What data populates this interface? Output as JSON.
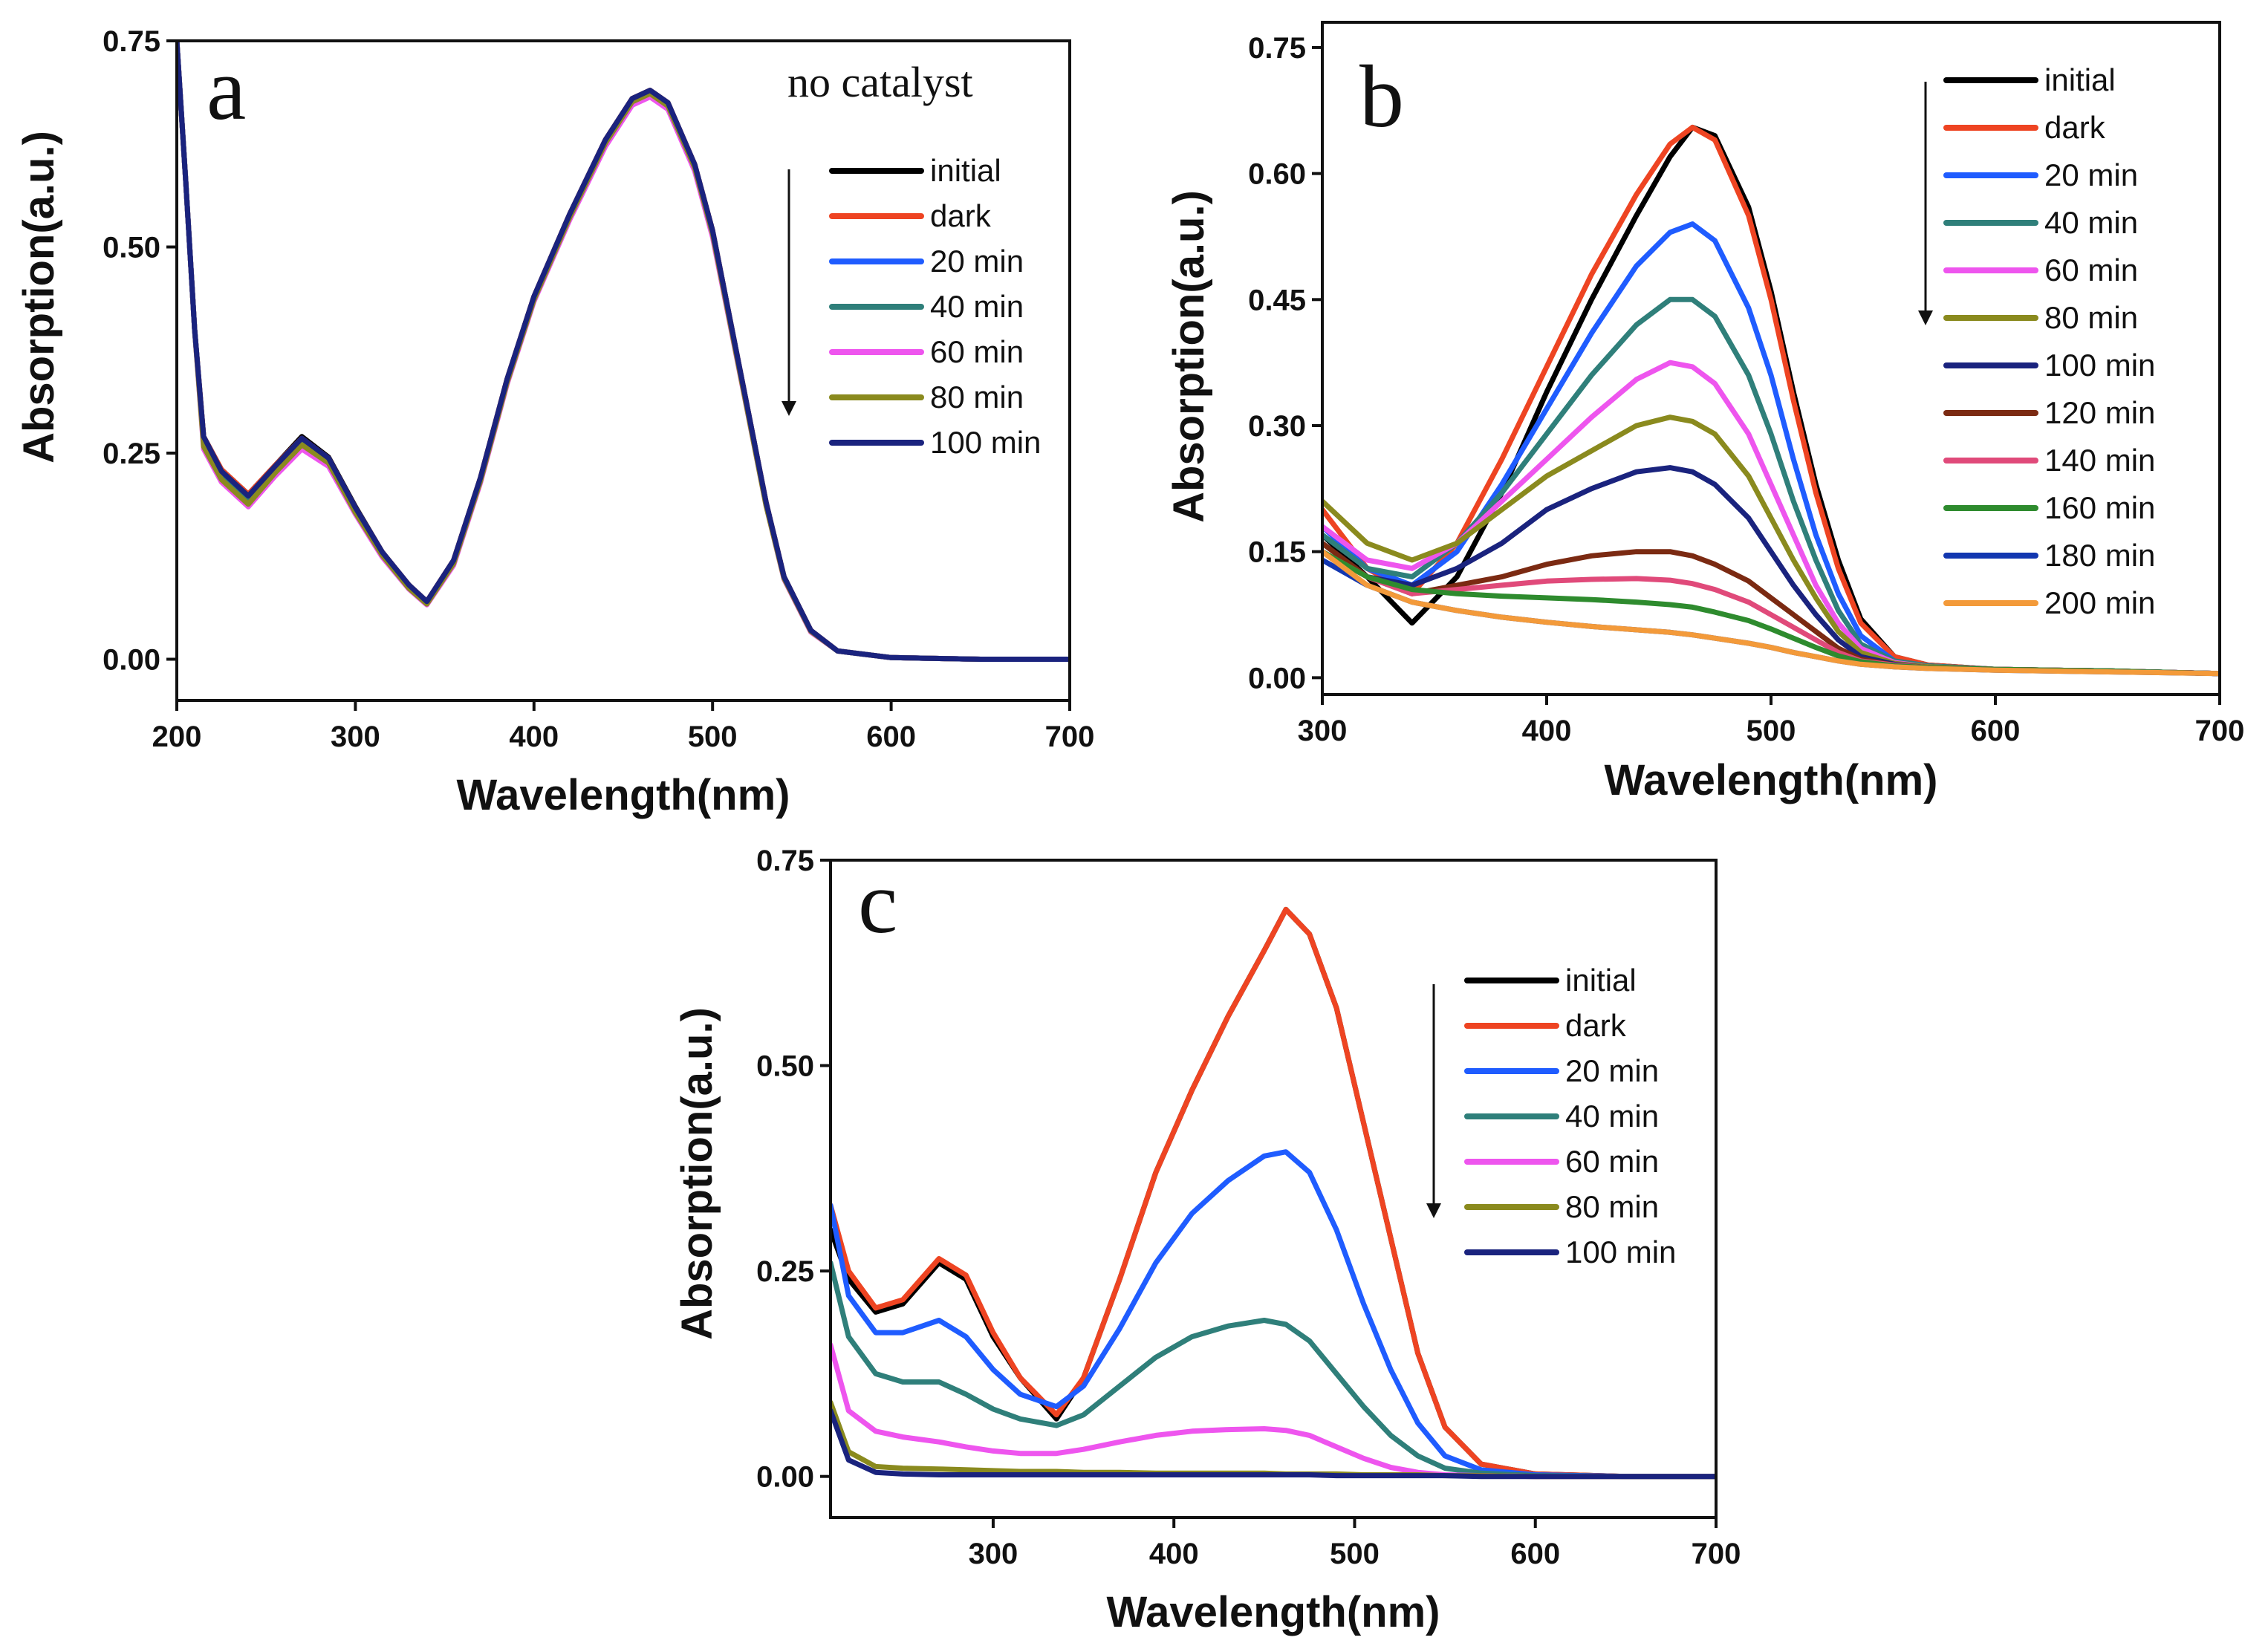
{
  "chart_data": [
    {
      "panel": "a",
      "type": "line",
      "annotation": "no catalyst",
      "xlabel": "Wavelength(nm)",
      "ylabel": "Absorption(a.u.)",
      "xlim": [
        200,
        700
      ],
      "ylim": [
        -0.05,
        0.75
      ],
      "xticks": [
        "200",
        "300",
        "400",
        "500",
        "600",
        "700"
      ],
      "yticks": [
        "0.00",
        "0.25",
        "0.50",
        "0.75"
      ],
      "x": [
        200,
        205,
        210,
        215,
        225,
        240,
        255,
        270,
        285,
        300,
        315,
        330,
        340,
        355,
        370,
        385,
        400,
        420,
        440,
        455,
        465,
        475,
        490,
        500,
        510,
        520,
        530,
        540,
        555,
        570,
        600,
        650,
        700
      ],
      "series": [
        {
          "name": "initial",
          "color": "#000000",
          "values": [
            0.75,
            0.58,
            0.4,
            0.27,
            0.23,
            0.2,
            0.235,
            0.27,
            0.245,
            0.185,
            0.13,
            0.09,
            0.07,
            0.12,
            0.22,
            0.34,
            0.44,
            0.54,
            0.63,
            0.68,
            0.69,
            0.675,
            0.6,
            0.52,
            0.41,
            0.3,
            0.19,
            0.1,
            0.035,
            0.01,
            0.002,
            0.0,
            0.0
          ]
        },
        {
          "name": "dark",
          "color": "#ee4422",
          "values": [
            0.75,
            0.58,
            0.4,
            0.27,
            0.23,
            0.2,
            0.235,
            0.268,
            0.244,
            0.184,
            0.13,
            0.09,
            0.07,
            0.12,
            0.22,
            0.34,
            0.44,
            0.54,
            0.63,
            0.68,
            0.69,
            0.675,
            0.6,
            0.52,
            0.41,
            0.3,
            0.19,
            0.1,
            0.035,
            0.01,
            0.002,
            0.0,
            0.0
          ]
        },
        {
          "name": "20 min",
          "color": "#1f5cff",
          "values": [
            0.75,
            0.58,
            0.4,
            0.265,
            0.225,
            0.195,
            0.232,
            0.265,
            0.242,
            0.182,
            0.128,
            0.088,
            0.069,
            0.118,
            0.218,
            0.338,
            0.438,
            0.538,
            0.628,
            0.678,
            0.688,
            0.673,
            0.598,
            0.518,
            0.408,
            0.298,
            0.188,
            0.099,
            0.034,
            0.01,
            0.002,
            0.0,
            0.0
          ]
        },
        {
          "name": "40 min",
          "color": "#2f7f7a",
          "values": [
            0.75,
            0.58,
            0.4,
            0.262,
            0.222,
            0.192,
            0.23,
            0.263,
            0.24,
            0.18,
            0.127,
            0.087,
            0.068,
            0.117,
            0.217,
            0.337,
            0.437,
            0.537,
            0.627,
            0.677,
            0.687,
            0.672,
            0.597,
            0.517,
            0.407,
            0.297,
            0.187,
            0.098,
            0.034,
            0.01,
            0.002,
            0.0,
            0.0
          ]
        },
        {
          "name": "60 min",
          "color": "#ee55ee",
          "values": [
            0.75,
            0.58,
            0.4,
            0.255,
            0.215,
            0.185,
            0.222,
            0.255,
            0.234,
            0.176,
            0.124,
            0.085,
            0.066,
            0.114,
            0.214,
            0.334,
            0.434,
            0.533,
            0.622,
            0.672,
            0.682,
            0.667,
            0.592,
            0.512,
            0.404,
            0.295,
            0.186,
            0.097,
            0.033,
            0.01,
            0.002,
            0.0,
            0.0
          ]
        },
        {
          "name": "80 min",
          "color": "#8a8a1e",
          "values": [
            0.75,
            0.58,
            0.4,
            0.258,
            0.218,
            0.188,
            0.226,
            0.26,
            0.238,
            0.178,
            0.126,
            0.086,
            0.067,
            0.116,
            0.216,
            0.336,
            0.436,
            0.536,
            0.626,
            0.676,
            0.686,
            0.671,
            0.596,
            0.516,
            0.406,
            0.296,
            0.186,
            0.098,
            0.034,
            0.01,
            0.002,
            0.0,
            0.0
          ]
        },
        {
          "name": "100 min",
          "color": "#1a237e",
          "values": [
            0.75,
            0.58,
            0.4,
            0.27,
            0.228,
            0.198,
            0.234,
            0.268,
            0.244,
            0.184,
            0.13,
            0.09,
            0.07,
            0.12,
            0.22,
            0.34,
            0.44,
            0.54,
            0.63,
            0.68,
            0.69,
            0.675,
            0.6,
            0.52,
            0.41,
            0.3,
            0.19,
            0.1,
            0.035,
            0.01,
            0.002,
            0.0,
            0.0
          ]
        }
      ]
    },
    {
      "panel": "b",
      "type": "line",
      "xlabel": "Wavelength(nm)",
      "ylabel": "Absorption(a.u.)",
      "xlim": [
        300,
        700
      ],
      "ylim": [
        -0.02,
        0.78
      ],
      "xticks": [
        "300",
        "400",
        "500",
        "600",
        "700"
      ],
      "yticks": [
        "0.00",
        "0.15",
        "0.30",
        "0.45",
        "0.60",
        "0.75"
      ],
      "x": [
        300,
        320,
        340,
        360,
        380,
        400,
        420,
        440,
        455,
        465,
        475,
        490,
        500,
        510,
        520,
        530,
        540,
        555,
        570,
        600,
        650,
        700
      ],
      "series": [
        {
          "name": "initial",
          "color": "#000000",
          "values": [
            0.17,
            0.12,
            0.065,
            0.12,
            0.22,
            0.34,
            0.45,
            0.55,
            0.62,
            0.655,
            0.645,
            0.56,
            0.46,
            0.34,
            0.23,
            0.14,
            0.07,
            0.025,
            0.015,
            0.01,
            0.008,
            0.005
          ]
        },
        {
          "name": "dark",
          "color": "#ee4422",
          "values": [
            0.2,
            0.13,
            0.1,
            0.16,
            0.26,
            0.37,
            0.48,
            0.575,
            0.635,
            0.655,
            0.64,
            0.55,
            0.45,
            0.33,
            0.22,
            0.13,
            0.065,
            0.025,
            0.015,
            0.01,
            0.008,
            0.005
          ]
        },
        {
          "name": "20 min",
          "color": "#1f5cff",
          "values": [
            0.18,
            0.13,
            0.11,
            0.15,
            0.23,
            0.32,
            0.41,
            0.49,
            0.53,
            0.54,
            0.52,
            0.44,
            0.36,
            0.26,
            0.17,
            0.1,
            0.05,
            0.02,
            0.014,
            0.01,
            0.008,
            0.005
          ]
        },
        {
          "name": "40 min",
          "color": "#2f7f7a",
          "values": [
            0.17,
            0.13,
            0.12,
            0.16,
            0.22,
            0.29,
            0.36,
            0.42,
            0.45,
            0.45,
            0.43,
            0.36,
            0.29,
            0.21,
            0.14,
            0.08,
            0.04,
            0.02,
            0.014,
            0.01,
            0.008,
            0.005
          ]
        },
        {
          "name": "60 min",
          "color": "#ee55ee",
          "values": [
            0.18,
            0.14,
            0.13,
            0.16,
            0.21,
            0.26,
            0.31,
            0.355,
            0.375,
            0.37,
            0.35,
            0.29,
            0.23,
            0.17,
            0.11,
            0.065,
            0.035,
            0.018,
            0.013,
            0.01,
            0.008,
            0.005
          ]
        },
        {
          "name": "80 min",
          "color": "#8a8a1e",
          "values": [
            0.21,
            0.16,
            0.14,
            0.16,
            0.2,
            0.24,
            0.27,
            0.3,
            0.31,
            0.305,
            0.29,
            0.24,
            0.19,
            0.14,
            0.095,
            0.055,
            0.03,
            0.017,
            0.013,
            0.01,
            0.008,
            0.005
          ]
        },
        {
          "name": "100 min",
          "color": "#1a237e",
          "values": [
            0.16,
            0.12,
            0.11,
            0.13,
            0.16,
            0.2,
            0.225,
            0.245,
            0.25,
            0.245,
            0.23,
            0.19,
            0.15,
            0.11,
            0.075,
            0.045,
            0.025,
            0.016,
            0.012,
            0.01,
            0.008,
            0.005
          ]
        },
        {
          "name": "120 min",
          "color": "#7b2a12",
          "values": [
            0.16,
            0.12,
            0.1,
            0.11,
            0.12,
            0.135,
            0.145,
            0.15,
            0.15,
            0.145,
            0.135,
            0.115,
            0.095,
            0.075,
            0.055,
            0.035,
            0.022,
            0.015,
            0.012,
            0.01,
            0.008,
            0.005
          ]
        },
        {
          "name": "140 min",
          "color": "#e04a7a",
          "values": [
            0.15,
            0.12,
            0.1,
            0.105,
            0.11,
            0.115,
            0.117,
            0.118,
            0.116,
            0.112,
            0.105,
            0.09,
            0.075,
            0.06,
            0.045,
            0.03,
            0.02,
            0.015,
            0.012,
            0.01,
            0.008,
            0.005
          ]
        },
        {
          "name": "160 min",
          "color": "#2e8b2e",
          "values": [
            0.15,
            0.12,
            0.105,
            0.1,
            0.097,
            0.095,
            0.093,
            0.09,
            0.087,
            0.084,
            0.078,
            0.068,
            0.058,
            0.047,
            0.036,
            0.026,
            0.019,
            0.014,
            0.012,
            0.01,
            0.008,
            0.005
          ]
        },
        {
          "name": "180 min",
          "color": "#1237b0",
          "values": [
            0.14,
            0.11,
            0.09,
            0.08,
            0.072,
            0.066,
            0.061,
            0.057,
            0.054,
            0.051,
            0.047,
            0.041,
            0.036,
            0.03,
            0.025,
            0.02,
            0.016,
            0.013,
            0.011,
            0.009,
            0.007,
            0.005
          ]
        },
        {
          "name": "200 min",
          "color": "#f39a3a",
          "values": [
            0.15,
            0.11,
            0.09,
            0.08,
            0.072,
            0.066,
            0.061,
            0.057,
            0.054,
            0.051,
            0.047,
            0.041,
            0.036,
            0.03,
            0.025,
            0.02,
            0.016,
            0.013,
            0.011,
            0.009,
            0.007,
            0.005
          ]
        }
      ]
    },
    {
      "panel": "c",
      "type": "line",
      "xlabel": "Wavelength(nm)",
      "ylabel": "Absorption(a.u.)",
      "xlim": [
        210,
        700
      ],
      "ylim": [
        -0.05,
        0.75
      ],
      "xticks": [
        "300",
        "400",
        "500",
        "600",
        "700"
      ],
      "yticks": [
        "0.00",
        "0.25",
        "0.50",
        "0.75"
      ],
      "x": [
        210,
        220,
        235,
        250,
        270,
        285,
        300,
        315,
        335,
        350,
        370,
        390,
        410,
        430,
        450,
        462,
        475,
        490,
        505,
        520,
        535,
        550,
        570,
        600,
        650,
        700
      ],
      "series": [
        {
          "name": "initial",
          "color": "#000000",
          "values": [
            0.3,
            0.24,
            0.2,
            0.21,
            0.26,
            0.24,
            0.17,
            0.12,
            0.07,
            0.12,
            0.24,
            0.37,
            0.47,
            0.56,
            0.64,
            0.69,
            0.66,
            0.57,
            0.43,
            0.29,
            0.15,
            0.06,
            0.015,
            0.003,
            0.0,
            0.0
          ]
        },
        {
          "name": "dark",
          "color": "#ee4422",
          "values": [
            0.33,
            0.25,
            0.205,
            0.215,
            0.265,
            0.245,
            0.175,
            0.12,
            0.075,
            0.12,
            0.24,
            0.37,
            0.47,
            0.56,
            0.64,
            0.69,
            0.66,
            0.57,
            0.43,
            0.29,
            0.15,
            0.06,
            0.015,
            0.003,
            0.0,
            0.0
          ]
        },
        {
          "name": "20 min",
          "color": "#1f5cff",
          "values": [
            0.33,
            0.22,
            0.175,
            0.175,
            0.19,
            0.17,
            0.13,
            0.1,
            0.085,
            0.11,
            0.18,
            0.26,
            0.32,
            0.36,
            0.39,
            0.395,
            0.37,
            0.3,
            0.21,
            0.13,
            0.065,
            0.025,
            0.008,
            0.002,
            0.0,
            0.0
          ]
        },
        {
          "name": "40 min",
          "color": "#2f7f7a",
          "values": [
            0.26,
            0.17,
            0.125,
            0.115,
            0.115,
            0.1,
            0.082,
            0.07,
            0.062,
            0.075,
            0.11,
            0.145,
            0.17,
            0.183,
            0.19,
            0.185,
            0.165,
            0.125,
            0.085,
            0.05,
            0.025,
            0.01,
            0.004,
            0.001,
            0.0,
            0.0
          ]
        },
        {
          "name": "60 min",
          "color": "#ee55ee",
          "values": [
            0.16,
            0.08,
            0.055,
            0.048,
            0.042,
            0.036,
            0.031,
            0.028,
            0.028,
            0.033,
            0.042,
            0.05,
            0.055,
            0.057,
            0.058,
            0.056,
            0.05,
            0.036,
            0.022,
            0.011,
            0.005,
            0.002,
            0.001,
            0.0,
            0.0,
            0.0
          ]
        },
        {
          "name": "80 min",
          "color": "#8a8a1e",
          "values": [
            0.09,
            0.03,
            0.012,
            0.01,
            0.009,
            0.008,
            0.007,
            0.006,
            0.006,
            0.005,
            0.005,
            0.004,
            0.004,
            0.004,
            0.004,
            0.003,
            0.003,
            0.003,
            0.002,
            0.002,
            0.002,
            0.001,
            0.001,
            0.0,
            0.0,
            0.0
          ]
        },
        {
          "name": "100 min",
          "color": "#1a237e",
          "values": [
            0.08,
            0.02,
            0.005,
            0.003,
            0.002,
            0.002,
            0.002,
            0.002,
            0.002,
            0.002,
            0.002,
            0.002,
            0.002,
            0.002,
            0.002,
            0.002,
            0.002,
            0.001,
            0.001,
            0.001,
            0.001,
            0.001,
            0.0,
            0.0,
            0.0,
            0.0
          ]
        }
      ]
    }
  ]
}
